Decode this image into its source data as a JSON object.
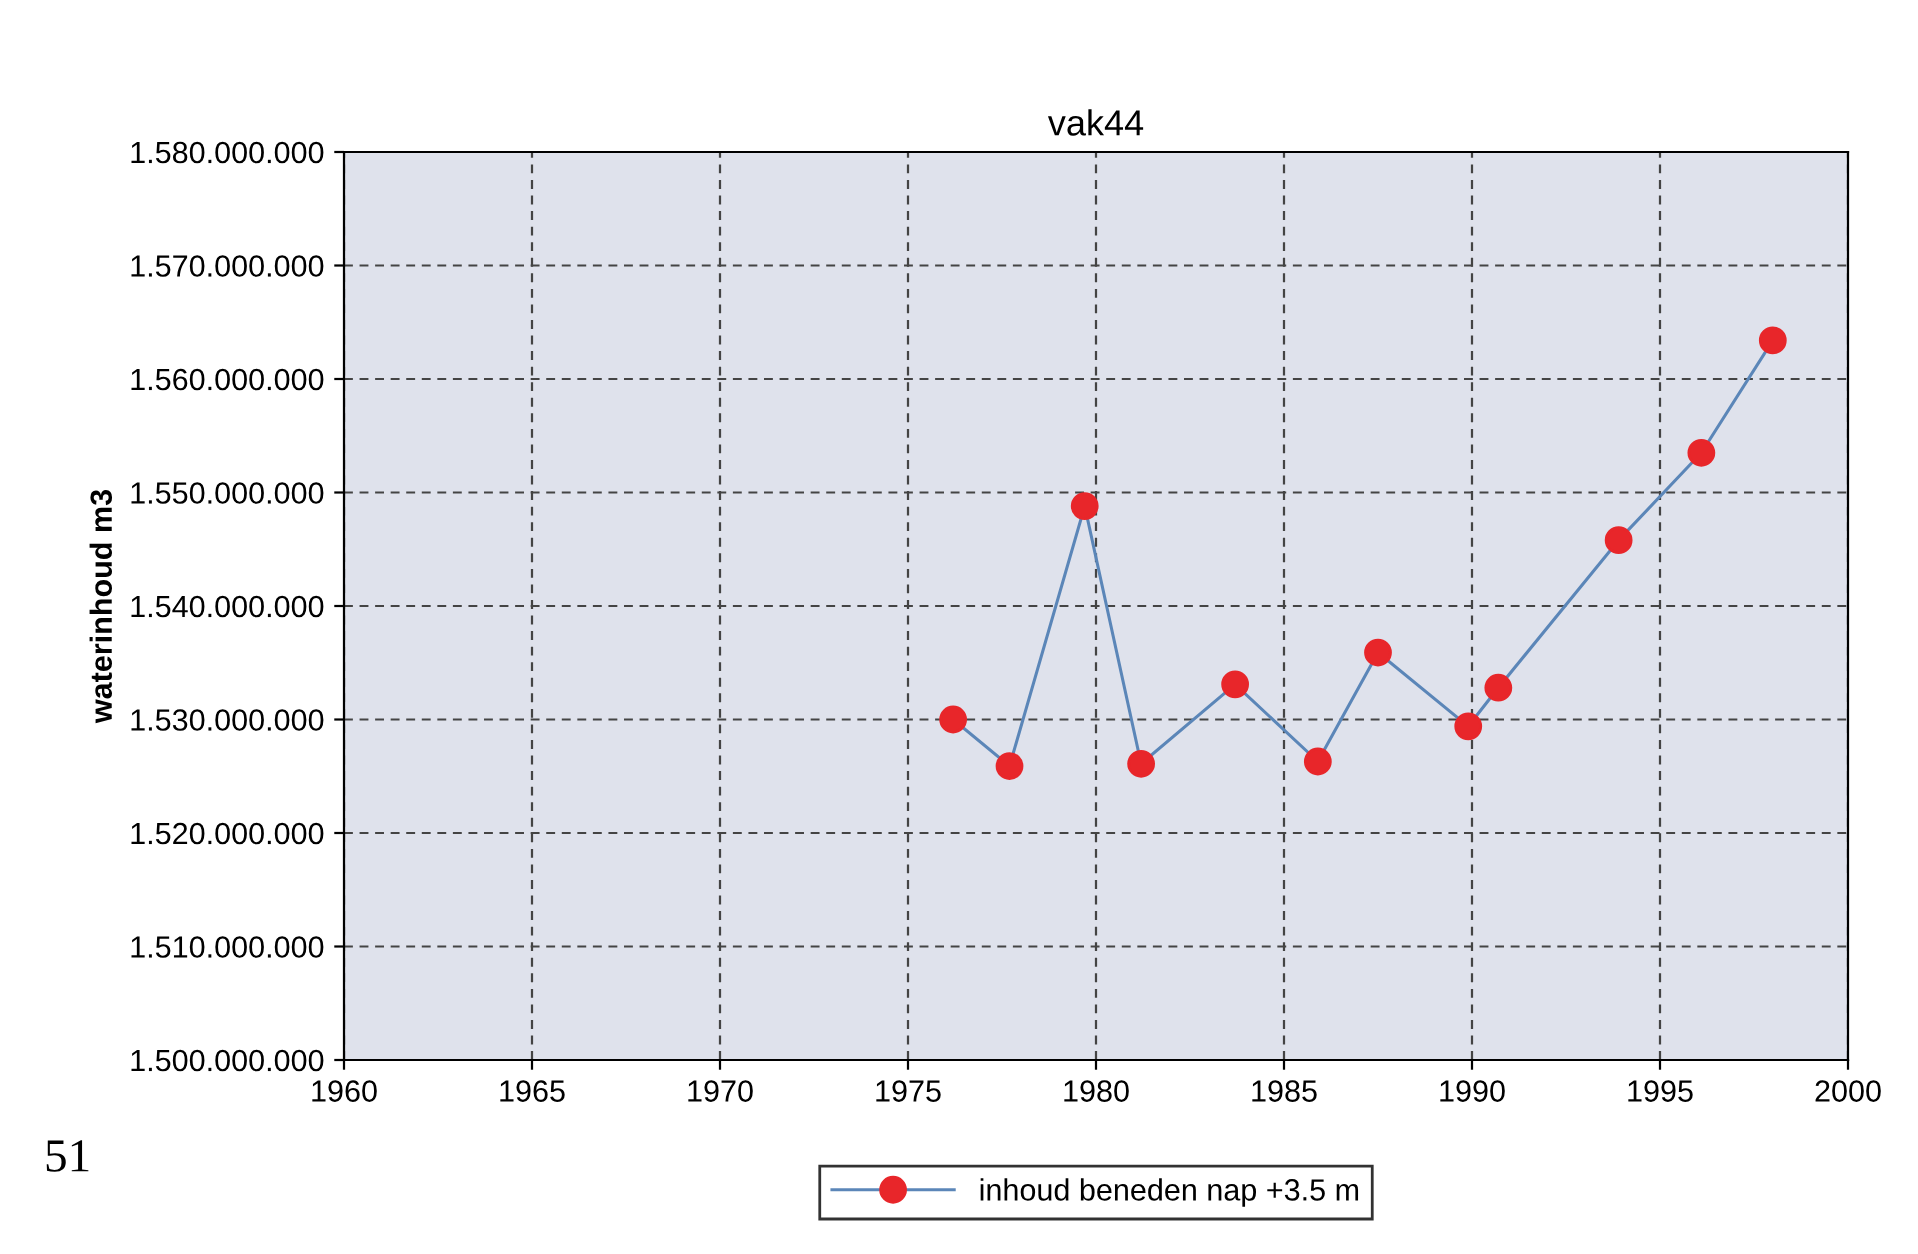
{
  "chart_data": {
    "type": "line",
    "title": "vak44",
    "ylabel": "waterinhoud m3",
    "x": [
      1976.2,
      1977.7,
      1979.7,
      1981.2,
      1983.7,
      1985.9,
      1987.5,
      1989.9,
      1990.7,
      1993.9,
      1996.1,
      1998.0
    ],
    "series": [
      {
        "name": "inhoud beneden nap +3.5 m",
        "color": "#5b86b8",
        "colors": [
          "#e8262a",
          "#e8262a",
          "#e8262a",
          "#e8262a",
          "#e8262a",
          "#e8262a",
          "#e8262a",
          "#e8262a",
          "#e8262a",
          "#e8262a",
          "#e8262a",
          "#e8262a"
        ],
        "values": [
          1530000000,
          1525900000,
          1548800000,
          1526100000,
          1533100000,
          1526300000,
          1535900000,
          1529400000,
          1532800000,
          1545800000,
          1553500000,
          1563400000
        ]
      }
    ],
    "xlim": [
      1960,
      2000
    ],
    "xticks": [
      1960,
      1965,
      1970,
      1975,
      1980,
      1985,
      1990,
      1995,
      2000
    ],
    "ylim": [
      1500000000,
      1580000000
    ],
    "yticks": [
      {
        "value": 1500000000,
        "label": "1.500.000.000"
      },
      {
        "value": 1510000000,
        "label": "1.510.000.000"
      },
      {
        "value": 1520000000,
        "label": "1.520.000.000"
      },
      {
        "value": 1530000000,
        "label": "1.530.000.000"
      },
      {
        "value": 1540000000,
        "label": "1.540.000.000"
      },
      {
        "value": 1550000000,
        "label": "1.550.000.000"
      },
      {
        "value": 1560000000,
        "label": "1.560.000.000"
      },
      {
        "value": 1570000000,
        "label": "1.570.000.000"
      },
      {
        "value": 1580000000,
        "label": "1.580.000.000"
      }
    ],
    "grid": true,
    "line_style": "solid",
    "marker": "circle",
    "legend": "bottom",
    "annotations": [
      "51"
    ]
  }
}
